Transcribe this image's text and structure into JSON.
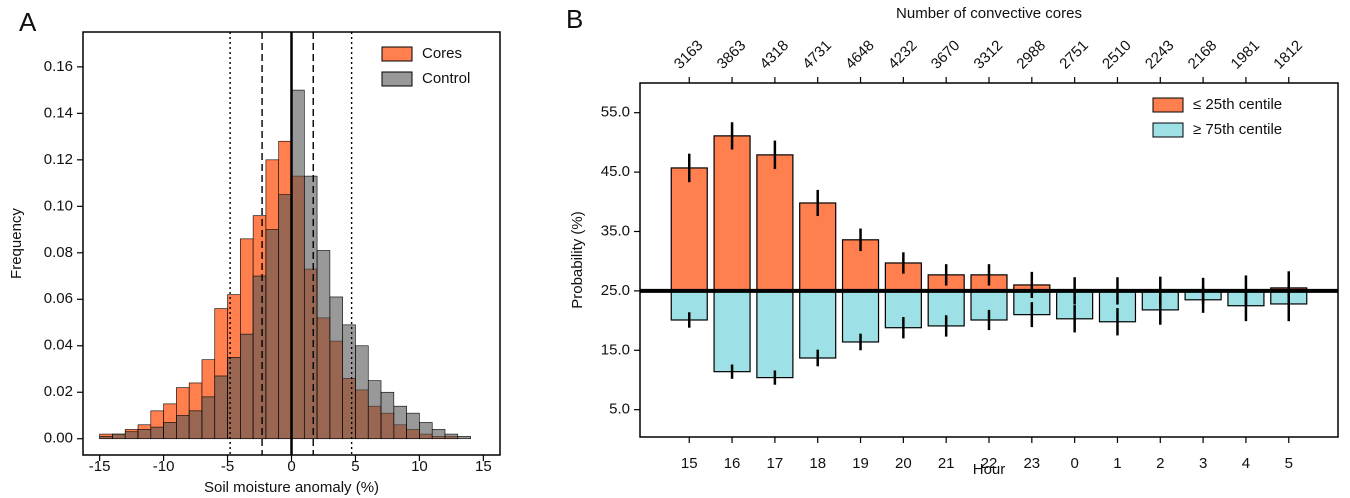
{
  "chart_data": [
    {
      "type": "histogram",
      "panel_label": "A",
      "xlabel": "Soil moisture anomaly (%)",
      "ylabel": "Frequency",
      "bins": [
        -15,
        -14,
        -13,
        -12,
        -11,
        -10,
        -9,
        -8,
        -7,
        -6,
        -5,
        -4,
        -3,
        -2,
        -1,
        0,
        1,
        2,
        3,
        4,
        5,
        6,
        7,
        8,
        9,
        10,
        11,
        12,
        13,
        14,
        15
      ],
      "series": [
        {
          "name": "Cores",
          "color": "#ff7f4f",
          "alpha": 1,
          "values": [
            0.002,
            0.002,
            0.004,
            0.006,
            0.012,
            0.015,
            0.022,
            0.024,
            0.034,
            0.056,
            0.062,
            0.086,
            0.096,
            0.12,
            0.128,
            0.113,
            0.073,
            0.052,
            0.042,
            0.026,
            0.021,
            0.014,
            0.011,
            0.006,
            0.004,
            0.002,
            0.001,
            0.001,
            0.0,
            0.0
          ]
        },
        {
          "name": "Control",
          "color": "#555555",
          "alpha": 0.6,
          "values": [
            0.001,
            0.002,
            0.003,
            0.004,
            0.005,
            0.007,
            0.01,
            0.012,
            0.018,
            0.027,
            0.035,
            0.045,
            0.07,
            0.09,
            0.105,
            0.15,
            0.113,
            0.081,
            0.061,
            0.049,
            0.04,
            0.025,
            0.02,
            0.014,
            0.011,
            0.007,
            0.004,
            0.002,
            0.001,
            0.0
          ]
        }
      ],
      "vlines": [
        {
          "x": 0,
          "style": "solid"
        },
        {
          "x": -2.3,
          "style": "dashed"
        },
        {
          "x": 1.7,
          "style": "dashed"
        },
        {
          "x": -4.8,
          "style": "dotted"
        },
        {
          "x": 4.7,
          "style": "dotted"
        }
      ],
      "xlim": [
        -16.3,
        16.3
      ],
      "xticks": [
        -15,
        -10,
        -5,
        0,
        5,
        10,
        15
      ],
      "ylim": [
        -0.007,
        0.175
      ],
      "yticks": [
        {
          "value": 0,
          "label": "0.00"
        },
        {
          "value": 0.02,
          "label": "0.02"
        },
        {
          "value": 0.04,
          "label": "0.04"
        },
        {
          "value": 0.06,
          "label": "0.06"
        },
        {
          "value": 0.08,
          "label": "0.08"
        },
        {
          "value": 0.1,
          "label": "0.10"
        },
        {
          "value": 0.12,
          "label": "0.12"
        },
        {
          "value": 0.14,
          "label": "0.14"
        },
        {
          "value": 0.16,
          "label": "0.16"
        }
      ],
      "legend": "upper right"
    },
    {
      "type": "bar",
      "panel_label": "B",
      "xlabel": "Hour",
      "ylabel": "Probability (%)",
      "x2label": "Number of convective cores",
      "categories": [
        "15",
        "16",
        "17",
        "18",
        "19",
        "20",
        "21",
        "22",
        "23",
        "0",
        "1",
        "2",
        "3",
        "4",
        "5"
      ],
      "x2_categories": [
        3163,
        3863,
        4318,
        4731,
        4648,
        4232,
        3670,
        3312,
        2988,
        2751,
        2510,
        2243,
        2168,
        1981,
        1812
      ],
      "baseline": 25,
      "series": [
        {
          "name": "≤  25th centile",
          "color": "#ff7f4f",
          "values": [
            45.7,
            51.1,
            47.9,
            39.8,
            33.6,
            29.7,
            27.7,
            27.7,
            26.0,
            25.0,
            25.0,
            25.0,
            25.0,
            25.0,
            25.5
          ],
          "errors": [
            2.4,
            2.3,
            2.4,
            2.2,
            1.9,
            1.8,
            1.8,
            1.8,
            2.2,
            2.3,
            2.3,
            2.4,
            2.2,
            2.6,
            2.8
          ]
        },
        {
          "name": "≥  75th centile",
          "color": "#9de0e6",
          "values": [
            20.1,
            11.4,
            10.4,
            13.7,
            16.4,
            18.8,
            19.1,
            20.1,
            21.0,
            20.3,
            19.8,
            21.8,
            23.5,
            22.5,
            22.8
          ],
          "errors": [
            1.3,
            1.2,
            1.2,
            1.4,
            1.4,
            1.8,
            1.8,
            1.7,
            2.1,
            2.3,
            2.3,
            2.5,
            2.2,
            2.6,
            2.9
          ]
        }
      ],
      "ylim": [
        0.4,
        60
      ],
      "yticks": [
        {
          "value": 5,
          "label": "5.0"
        },
        {
          "value": 15,
          "label": "15.0"
        },
        {
          "value": 25,
          "label": "25.0"
        },
        {
          "value": 35,
          "label": "35.0"
        },
        {
          "value": 45,
          "label": "45.0"
        },
        {
          "value": 55,
          "label": "55.0"
        }
      ],
      "legend": "upper right"
    }
  ]
}
